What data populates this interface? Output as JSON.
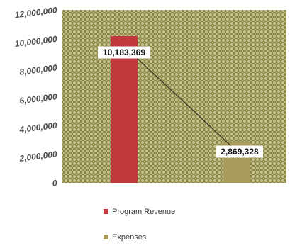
{
  "chart_data": {
    "type": "bar",
    "categories": [
      "Program Revenue",
      "Expenses"
    ],
    "values": [
      10183369,
      2869328
    ],
    "value_labels": [
      "10,183,369",
      "2,869,328"
    ],
    "y_ticks": [
      0,
      2000000,
      4000000,
      6000000,
      8000000,
      10000000,
      12000000
    ],
    "y_tick_labels": [
      "0",
      "2,000,000",
      "4,000,000",
      "6,000,000",
      "8,000,000",
      "10,000,000",
      "12,000,000"
    ],
    "ylim": [
      0,
      12000000
    ],
    "legend": {
      "placement": "bottom",
      "entries": [
        "Program Revenue",
        "Expenses"
      ]
    },
    "connector_line": true,
    "grid": false,
    "colors": {
      "program_revenue": "#c0393c",
      "expenses": "#a79c5e",
      "plot_background": "#8e8a48",
      "connector": "#3a3520"
    }
  }
}
